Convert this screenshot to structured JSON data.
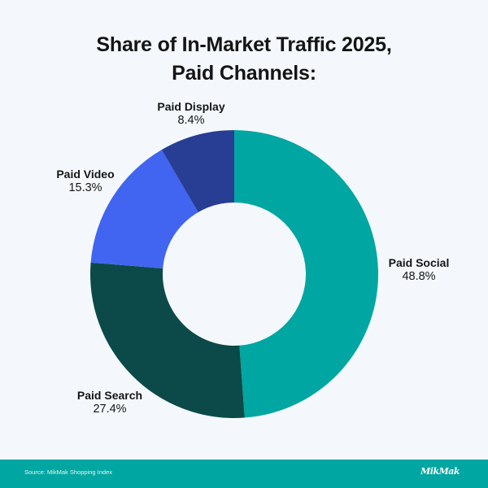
{
  "title": {
    "line1": "Share of In-Market Traffic 2025,",
    "line2": "Paid Channels:"
  },
  "chart_data": {
    "type": "pie",
    "variant": "donut",
    "title": "Share of In-Market Traffic 2025, Paid Channels:",
    "categories": [
      "Paid Social",
      "Paid Search",
      "Paid Video",
      "Paid Display"
    ],
    "values": [
      48.8,
      27.4,
      15.3,
      8.4
    ],
    "unit": "%",
    "colors": [
      "#00a6a1",
      "#0b4a48",
      "#4165f0",
      "#283e94"
    ],
    "start_angle_deg": 0,
    "direction": "clockwise",
    "labels": [
      "Paid Social 48.8%",
      "Paid Search 27.4%",
      "Paid Video 15.3%",
      "Paid Display 8.4%"
    ]
  },
  "labels": {
    "social": {
      "name": "Paid Social",
      "pct": "48.8%"
    },
    "search": {
      "name": "Paid Search",
      "pct": "27.4%"
    },
    "video": {
      "name": "Paid Video",
      "pct": "15.3%"
    },
    "display": {
      "name": "Paid Display",
      "pct": "8.4%"
    }
  },
  "footer": {
    "source": "Source: MikMak Shopping Index",
    "logo": "MikMak",
    "background": "#00a6a1"
  }
}
